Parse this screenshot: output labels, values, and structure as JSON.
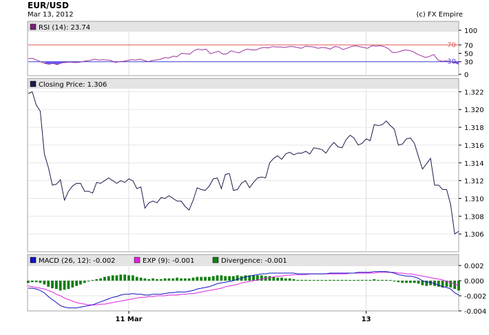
{
  "header": {
    "title": "EUR/USD",
    "date": "Mar 13, 2012",
    "credit": "(c) FX Empire"
  },
  "chart_data": [
    {
      "type": "line",
      "panel": "rsi",
      "legend_label": "RSI (14): 23.74",
      "ylim": [
        0,
        100
      ],
      "yticks": [
        0,
        30,
        50,
        70,
        100
      ],
      "reference_lines": [
        {
          "value": 70,
          "label": "70",
          "color": "#e05555"
        },
        {
          "value": 30,
          "label": "30",
          "color": "#3a3ad0"
        }
      ],
      "values": [
        37,
        38,
        34,
        30,
        26,
        24,
        26,
        23,
        27,
        28,
        29,
        28,
        28,
        30,
        32,
        33,
        36,
        34,
        35,
        34,
        33,
        28,
        30,
        31,
        33,
        35,
        34,
        36,
        33,
        30,
        33,
        34,
        36,
        40,
        39,
        43,
        42,
        50,
        49,
        48,
        56,
        60,
        58,
        60,
        49,
        52,
        55,
        48,
        49,
        56,
        53,
        51,
        57,
        60,
        58,
        58,
        62,
        64,
        63,
        66,
        65,
        65,
        64,
        66,
        66,
        64,
        62,
        67,
        66,
        65,
        62,
        64,
        63,
        60,
        66,
        65,
        59,
        62,
        66,
        68,
        66,
        64,
        62,
        68,
        67,
        68,
        66,
        61,
        52,
        52,
        55,
        58,
        57,
        54,
        48,
        44,
        40,
        43,
        47,
        34,
        31,
        32,
        30,
        28,
        24
      ],
      "colors": {
        "line": "#9a2fa0",
        "fill_below": "#6a5cff",
        "legend_square": "#7a1f7a"
      }
    },
    {
      "type": "line",
      "panel": "price",
      "legend_label": "Closing Price: 1.306",
      "ylim": [
        1.304,
        1.3235
      ],
      "yticks": [
        "1.306",
        "1.308",
        "1.310",
        "1.312",
        "1.314",
        "1.316",
        "1.318",
        "1.320",
        "1.322"
      ],
      "values": [
        1.3218,
        1.322,
        1.3205,
        1.3198,
        1.315,
        1.3135,
        1.3115,
        1.3116,
        1.3121,
        1.3098,
        1.3108,
        1.3114,
        1.3117,
        1.3117,
        1.3108,
        1.3108,
        1.3106,
        1.3118,
        1.3117,
        1.312,
        1.3123,
        1.312,
        1.3117,
        1.312,
        1.3118,
        1.3122,
        1.312,
        1.3111,
        1.3113,
        1.3089,
        1.3095,
        1.3097,
        1.3095,
        1.3101,
        1.31,
        1.3103,
        1.31,
        1.3097,
        1.3097,
        1.3091,
        1.3087,
        1.3098,
        1.3112,
        1.311,
        1.3109,
        1.3114,
        1.3122,
        1.3123,
        1.3111,
        1.3127,
        1.3128,
        1.3109,
        1.311,
        1.3117,
        1.312,
        1.3112,
        1.3118,
        1.3123,
        1.3124,
        1.3123,
        1.314,
        1.3145,
        1.3148,
        1.3144,
        1.315,
        1.3152,
        1.3149,
        1.3151,
        1.3151,
        1.3153,
        1.315,
        1.3157,
        1.3156,
        1.3155,
        1.3151,
        1.3158,
        1.3163,
        1.3158,
        1.3157,
        1.3166,
        1.3171,
        1.3168,
        1.316,
        1.3162,
        1.3167,
        1.3165,
        1.3183,
        1.3182,
        1.3183,
        1.3187,
        1.3182,
        1.3178,
        1.316,
        1.3161,
        1.3167,
        1.3168,
        1.3162,
        1.3147,
        1.3133,
        1.3139,
        1.3145,
        1.3115,
        1.3115,
        1.311,
        1.311,
        1.3093,
        1.306,
        1.3063
      ],
      "colors": {
        "line": "#1a1a4a",
        "legend_square": "#1a1a4a"
      }
    },
    {
      "type": "bar",
      "panel": "macd",
      "ylim": [
        -0.004,
        0.002
      ],
      "yticks": [
        "-0.004",
        "-0.002",
        "0.000",
        "0.002"
      ],
      "xticks": [
        {
          "label": "11 Mar",
          "index": 25
        },
        {
          "label": "13",
          "index": 84
        }
      ],
      "series": [
        {
          "name": "MACD (26, 12)",
          "legend_label": "MACD (26, 12): -0.002",
          "color": "#1010c0",
          "values": [
            -0.001,
            -0.001,
            -0.0011,
            -0.0013,
            -0.0016,
            -0.0021,
            -0.0025,
            -0.0029,
            -0.0033,
            -0.0035,
            -0.0036,
            -0.0036,
            -0.0036,
            -0.0035,
            -0.0034,
            -0.0033,
            -0.0032,
            -0.003,
            -0.0028,
            -0.0026,
            -0.0024,
            -0.0022,
            -0.0021,
            -0.0019,
            -0.0018,
            -0.0018,
            -0.0017,
            -0.0018,
            -0.0018,
            -0.0019,
            -0.0019,
            -0.0018,
            -0.0018,
            -0.0018,
            -0.0017,
            -0.0016,
            -0.0016,
            -0.0015,
            -0.0015,
            -0.0015,
            -0.0014,
            -0.0013,
            -0.0011,
            -0.001,
            -0.0009,
            -0.0008,
            -0.0006,
            -0.0004,
            -0.0003,
            -0.0002,
            -0.0001,
            0.0,
            0.0002,
            0.0003,
            0.0005,
            0.0006,
            0.0007,
            0.0008,
            0.0009,
            0.0009,
            0.001,
            0.001,
            0.001,
            0.001,
            0.001,
            0.001,
            0.001,
            0.0009,
            0.0009,
            0.0009,
            0.0009,
            0.0009,
            0.0009,
            0.0009,
            0.0009,
            0.001,
            0.001,
            0.001,
            0.001,
            0.001,
            0.001,
            0.001,
            0.0011,
            0.0011,
            0.0011,
            0.0011,
            0.0012,
            0.0012,
            0.0012,
            0.0012,
            0.0011,
            0.001,
            0.0008,
            0.0007,
            0.0006,
            0.0006,
            0.0005,
            0.0003,
            0.0,
            -0.0002,
            -0.0002,
            -0.0004,
            -0.0006,
            -0.0008,
            -0.0009,
            -0.0011,
            -0.0016,
            -0.0019
          ]
        },
        {
          "name": "EXP (9)",
          "legend_label": "EXP (9): -0.001",
          "color": "#e020e0",
          "values": [
            -0.0007,
            -0.0008,
            -0.0009,
            -0.001,
            -0.0011,
            -0.0013,
            -0.0015,
            -0.0018,
            -0.002,
            -0.0023,
            -0.0025,
            -0.0027,
            -0.0029,
            -0.003,
            -0.0031,
            -0.0032,
            -0.0032,
            -0.0032,
            -0.0031,
            -0.0031,
            -0.003,
            -0.0029,
            -0.0028,
            -0.0027,
            -0.0026,
            -0.0025,
            -0.0024,
            -0.0023,
            -0.0022,
            -0.0022,
            -0.0021,
            -0.0021,
            -0.002,
            -0.002,
            -0.002,
            -0.0019,
            -0.0019,
            -0.0019,
            -0.0018,
            -0.0018,
            -0.0017,
            -0.0017,
            -0.0016,
            -0.0015,
            -0.0014,
            -0.0013,
            -0.0012,
            -0.0011,
            -0.001,
            -0.0008,
            -0.0007,
            -0.0006,
            -0.0005,
            -0.0003,
            -0.0002,
            -0.0001,
            0.0,
            0.0001,
            0.0002,
            0.0003,
            0.0004,
            0.0005,
            0.0006,
            0.0006,
            0.0007,
            0.0007,
            0.0008,
            0.0008,
            0.0008,
            0.0008,
            0.0009,
            0.0009,
            0.0009,
            0.0009,
            0.0009,
            0.0009,
            0.0009,
            0.0009,
            0.0009,
            0.0009,
            0.001,
            0.001,
            0.001,
            0.001,
            0.001,
            0.001,
            0.001,
            0.0011,
            0.0011,
            0.0011,
            0.0011,
            0.0011,
            0.001,
            0.001,
            0.0009,
            0.0009,
            0.0008,
            0.0007,
            0.0006,
            0.0005,
            0.0004,
            0.0003,
            0.0002,
            0.0001,
            -0.0001,
            -0.0002,
            -0.0005,
            -0.0006
          ]
        },
        {
          "name": "Divergence",
          "legend_label": "Divergence: -0.001",
          "color": "#108010",
          "values": [
            -0.0003,
            -0.0002,
            -0.0002,
            -0.0003,
            -0.0005,
            -0.0008,
            -0.001,
            -0.0011,
            -0.0013,
            -0.0012,
            -0.0011,
            -0.0009,
            -0.0007,
            -0.0005,
            -0.0003,
            -0.0001,
            0.0,
            0.0002,
            0.0003,
            0.0005,
            0.0006,
            0.0007,
            0.0007,
            0.0008,
            0.0008,
            0.0007,
            0.0007,
            0.0005,
            0.0004,
            0.0003,
            0.0002,
            0.0003,
            0.0002,
            0.0002,
            0.0003,
            0.0003,
            0.0003,
            0.0004,
            0.0003,
            0.0003,
            0.0003,
            0.0004,
            0.0005,
            0.0005,
            0.0005,
            0.0005,
            0.0006,
            0.0007,
            0.0007,
            0.0006,
            0.0006,
            0.0006,
            0.0007,
            0.0006,
            0.0007,
            0.0007,
            0.0007,
            0.0007,
            0.0007,
            0.0006,
            0.0006,
            0.0005,
            0.0004,
            0.0004,
            0.0003,
            0.0003,
            0.0002,
            0.0001,
            0.0001,
            0.0001,
            0.0,
            0.0,
            0.0,
            0.0,
            0.0,
            0.0001,
            0.0001,
            0.0001,
            0.0001,
            0.0001,
            0.0,
            0.0,
            0.0001,
            0.0001,
            0.0001,
            0.0001,
            0.0002,
            0.0001,
            0.0001,
            0.0001,
            0.0,
            -0.0001,
            -0.0002,
            -0.0003,
            -0.0003,
            -0.0003,
            -0.0003,
            -0.0004,
            -0.0006,
            -0.0007,
            -0.0006,
            -0.0007,
            -0.0008,
            -0.0009,
            -0.0008,
            -0.0009,
            -0.0011,
            -0.0013
          ]
        }
      ]
    }
  ]
}
